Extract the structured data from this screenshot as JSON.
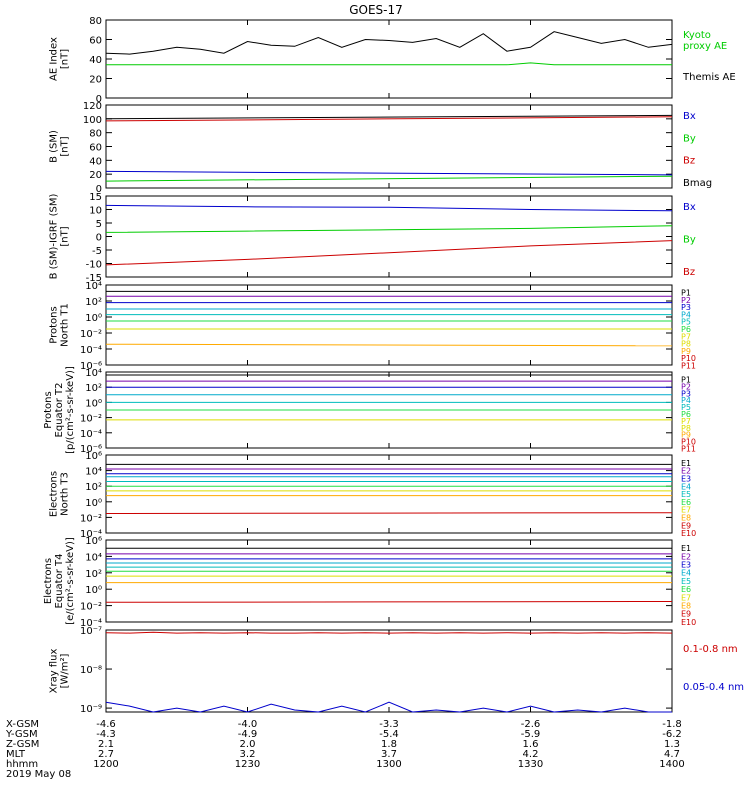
{
  "title": "GOES-17",
  "colors": {
    "black": "#000000",
    "green": "#00cc00",
    "red": "#cc0000",
    "blue": "#0000cc",
    "purple": "#7700aa",
    "cyan": "#00aacc",
    "teal": "#00bbbb",
    "yellow": "#dddd00",
    "orange": "#ffaa00",
    "lime": "#22dd44"
  },
  "chart_data": [
    {
      "type": "line",
      "ylabel": "AE Index\n[nT]",
      "ylim": [
        0,
        80
      ],
      "yticks": [
        0,
        20,
        40,
        60,
        80
      ],
      "ytick_labels": [
        "0",
        "20",
        "40",
        "60",
        "80"
      ],
      "x": [
        0,
        5,
        10,
        15,
        20,
        25,
        30,
        35,
        40,
        45,
        50,
        55,
        60,
        65,
        70,
        75,
        80,
        85,
        90,
        95,
        100,
        105,
        110,
        115,
        120
      ],
      "series": [
        {
          "name": "Kyoto proxy AE",
          "color": "green",
          "values": [
            34,
            34,
            34,
            34,
            34,
            34,
            34,
            34,
            34,
            34,
            34,
            34,
            34,
            34,
            34,
            34,
            34,
            34,
            36,
            34,
            34,
            34,
            34,
            34,
            34
          ]
        },
        {
          "name": "Themis AE",
          "color": "black",
          "values": [
            46,
            45,
            48,
            52,
            50,
            46,
            58,
            54,
            53,
            62,
            52,
            60,
            59,
            57,
            61,
            52,
            66,
            48,
            52,
            68,
            62,
            56,
            60,
            52,
            55
          ]
        }
      ],
      "legend": [
        {
          "text": "Kyoto",
          "color": "green"
        },
        {
          "text": "proxy AE",
          "color": "green"
        },
        {
          "text": "Themis AE",
          "color": "black"
        }
      ]
    },
    {
      "type": "line",
      "ylabel": "B (SM)\n[nT]",
      "ylim": [
        0,
        120
      ],
      "yticks": [
        0,
        20,
        40,
        60,
        80,
        100,
        120
      ],
      "ytick_labels": [
        "0",
        "20",
        "40",
        "60",
        "80",
        "100",
        "120"
      ],
      "x": [
        0,
        120
      ],
      "series": [
        {
          "name": "Bz",
          "color": "red",
          "values": [
            97,
            103
          ]
        },
        {
          "name": "Bx",
          "color": "blue",
          "values": [
            24,
            19
          ]
        },
        {
          "name": "By",
          "color": "green",
          "values": [
            10,
            17
          ]
        },
        {
          "name": "Bmag",
          "color": "black",
          "values": [
            100,
            105
          ]
        }
      ],
      "legend": [
        {
          "text": "Bx",
          "color": "blue"
        },
        {
          "text": "By",
          "color": "green"
        },
        {
          "text": "Bz",
          "color": "red"
        },
        {
          "text": "Bmag",
          "color": "black"
        }
      ]
    },
    {
      "type": "line",
      "ylabel": "B (SM)-IGRF (SM)\n[nT]",
      "ylim": [
        -15,
        15
      ],
      "yticks": [
        -15,
        -10,
        -5,
        0,
        5,
        10,
        15
      ],
      "ytick_labels": [
        "-15",
        "-10",
        "-5",
        "0",
        "5",
        "10",
        "15"
      ],
      "x": [
        0,
        30,
        60,
        90,
        120
      ],
      "series": [
        {
          "name": "Bx",
          "color": "blue",
          "values": [
            11.5,
            11,
            10.8,
            10,
            9.5
          ]
        },
        {
          "name": "By",
          "color": "green",
          "values": [
            1.5,
            2,
            2.5,
            3,
            4
          ]
        },
        {
          "name": "Bz",
          "color": "red",
          "values": [
            -10.5,
            -8.5,
            -6,
            -3.5,
            -1.5
          ]
        }
      ],
      "legend": [
        {
          "text": "Bx",
          "color": "blue"
        },
        {
          "text": "By",
          "color": "green"
        },
        {
          "text": "Bz",
          "color": "red"
        }
      ]
    },
    {
      "type": "line",
      "scale": "log",
      "ylabel": "Protons\nNorth T1",
      "ylim": [
        -6,
        4
      ],
      "yticks": [
        -6,
        -4,
        -2,
        0,
        2,
        4
      ],
      "ytick_labels": [
        "10⁻⁶",
        "10⁻⁴",
        "10⁻²",
        "10⁰",
        "10²",
        "10⁴"
      ],
      "x": [
        0,
        120
      ],
      "series": [
        {
          "name": "P1",
          "color": "black",
          "values": [
            3.2,
            3.2
          ]
        },
        {
          "name": "P2",
          "color": "purple",
          "values": [
            2.6,
            2.6
          ]
        },
        {
          "name": "P3",
          "color": "blue",
          "values": [
            1.8,
            1.8
          ]
        },
        {
          "name": "P4",
          "color": "cyan",
          "values": [
            1.0,
            1.0
          ]
        },
        {
          "name": "P5",
          "color": "teal",
          "values": [
            0.3,
            0.3
          ]
        },
        {
          "name": "P6",
          "color": "lime",
          "values": [
            -0.5,
            -0.5
          ]
        },
        {
          "name": "P7",
          "color": "yellow",
          "values": [
            -1.5,
            -1.5
          ]
        },
        {
          "name": "P8",
          "color": "orange",
          "values": [
            -3.4,
            -3.6
          ]
        }
      ],
      "legend": [
        "P1",
        "P2",
        "P3",
        "P4",
        "P5",
        "P6",
        "P7",
        "P8",
        "P9",
        "P10",
        "P11"
      ],
      "legend_colors": [
        "black",
        "purple",
        "blue",
        "cyan",
        "teal",
        "lime",
        "yellow",
        "yellow",
        "orange",
        "red",
        "red"
      ]
    },
    {
      "type": "line",
      "scale": "log",
      "ylabel": "Protons\nEquator T2\n[p/(cm²-s-sr-keV)]",
      "ylim": [
        -6,
        4
      ],
      "yticks": [
        -6,
        -4,
        -2,
        0,
        2,
        4
      ],
      "ytick_labels": [
        "10⁻⁶",
        "10⁻⁴",
        "10⁻²",
        "10⁰",
        "10²",
        "10⁴"
      ],
      "x": [
        0,
        120
      ],
      "series": [
        {
          "name": "P1",
          "color": "black",
          "values": [
            3.6,
            3.6
          ]
        },
        {
          "name": "P2",
          "color": "purple",
          "values": [
            2.8,
            2.8
          ]
        },
        {
          "name": "P3",
          "color": "blue",
          "values": [
            2.0,
            2.0
          ]
        },
        {
          "name": "P4",
          "color": "cyan",
          "values": [
            1.0,
            1.0
          ]
        },
        {
          "name": "P5",
          "color": "teal",
          "values": [
            0.0,
            0.0
          ]
        },
        {
          "name": "P6",
          "color": "lime",
          "values": [
            -1.0,
            -1.0
          ]
        },
        {
          "name": "P7",
          "color": "yellow",
          "values": [
            -2.3,
            -2.3
          ]
        }
      ],
      "legend": [
        "P1",
        "P2",
        "P3",
        "P4",
        "P5",
        "P6",
        "P7",
        "P8",
        "P9",
        "P10",
        "P11"
      ],
      "legend_colors": [
        "black",
        "purple",
        "blue",
        "cyan",
        "teal",
        "lime",
        "yellow",
        "yellow",
        "orange",
        "red",
        "red"
      ]
    },
    {
      "type": "line",
      "scale": "log",
      "ylabel": "Electrons\nNorth T3",
      "ylim": [
        -4,
        6
      ],
      "yticks": [
        -4,
        -2,
        0,
        2,
        4,
        6
      ],
      "ytick_labels": [
        "10⁻⁴",
        "10⁻²",
        "10⁰",
        "10²",
        "10⁴",
        "10⁶"
      ],
      "x": [
        0,
        120
      ],
      "series": [
        {
          "name": "E1",
          "color": "black",
          "values": [
            4.8,
            4.8
          ]
        },
        {
          "name": "E2",
          "color": "purple",
          "values": [
            4.2,
            4.2
          ]
        },
        {
          "name": "E3",
          "color": "blue",
          "values": [
            3.6,
            3.6
          ]
        },
        {
          "name": "E4",
          "color": "cyan",
          "values": [
            3.2,
            3.2
          ]
        },
        {
          "name": "E5",
          "color": "teal",
          "values": [
            2.6,
            2.6
          ]
        },
        {
          "name": "E6",
          "color": "lime",
          "values": [
            2.0,
            2.0
          ]
        },
        {
          "name": "E7",
          "color": "yellow",
          "values": [
            1.4,
            1.4
          ]
        },
        {
          "name": "E8",
          "color": "orange",
          "values": [
            0.8,
            0.8
          ]
        },
        {
          "name": "E9",
          "color": "red",
          "values": [
            -1.5,
            -1.4
          ]
        }
      ],
      "legend": [
        "E1",
        "E2",
        "E3",
        "E4",
        "E5",
        "E6",
        "E7",
        "E8",
        "E9",
        "E10"
      ],
      "legend_colors": [
        "black",
        "purple",
        "blue",
        "cyan",
        "teal",
        "lime",
        "yellow",
        "orange",
        "red",
        "red"
      ]
    },
    {
      "type": "line",
      "scale": "log",
      "ylabel": "Electrons\nEquator T4\n[e/(cm²-s-sr-keV)]",
      "ylim": [
        -4,
        6
      ],
      "yticks": [
        -4,
        -2,
        0,
        2,
        4,
        6
      ],
      "ytick_labels": [
        "10⁻⁴",
        "10⁻²",
        "10⁰",
        "10²",
        "10⁴",
        "10⁶"
      ],
      "x": [
        0,
        120
      ],
      "series": [
        {
          "name": "E1",
          "color": "black",
          "values": [
            5.0,
            5.0
          ]
        },
        {
          "name": "E2",
          "color": "purple",
          "values": [
            4.3,
            4.3
          ]
        },
        {
          "name": "E3",
          "color": "blue",
          "values": [
            3.7,
            3.7
          ]
        },
        {
          "name": "E4",
          "color": "cyan",
          "values": [
            3.2,
            3.2
          ]
        },
        {
          "name": "E5",
          "color": "teal",
          "values": [
            2.7,
            2.7
          ]
        },
        {
          "name": "E6",
          "color": "lime",
          "values": [
            2.2,
            2.2
          ]
        },
        {
          "name": "E7",
          "color": "yellow",
          "values": [
            1.6,
            1.6
          ]
        },
        {
          "name": "E8",
          "color": "orange",
          "values": [
            0.8,
            0.8
          ]
        },
        {
          "name": "E9",
          "color": "red",
          "values": [
            -1.6,
            -1.5
          ]
        }
      ],
      "legend": [
        "E1",
        "E2",
        "E3",
        "E4",
        "E5",
        "E6",
        "E7",
        "E8",
        "E9",
        "E10"
      ],
      "legend_colors": [
        "black",
        "purple",
        "blue",
        "cyan",
        "teal",
        "lime",
        "yellow",
        "orange",
        "red",
        "red"
      ]
    },
    {
      "type": "line",
      "scale": "log",
      "ylabel": "Xray flux\n[W/m²]",
      "ylim": [
        -9.1,
        -7
      ],
      "yticks": [
        -9,
        -8,
        -7
      ],
      "ytick_labels": [
        "10⁻⁹",
        "10⁻⁸",
        "10⁻⁷"
      ],
      "x": [
        0,
        5,
        10,
        15,
        20,
        25,
        30,
        35,
        40,
        45,
        50,
        55,
        60,
        65,
        70,
        75,
        80,
        85,
        90,
        95,
        100,
        105,
        110,
        115,
        120
      ],
      "series": [
        {
          "name": "0.1-0.8 nm",
          "color": "red",
          "values": [
            -7.07,
            -7.08,
            -7.06,
            -7.08,
            -7.07,
            -7.08,
            -7.07,
            -7.08,
            -7.08,
            -7.07,
            -7.08,
            -7.07,
            -7.08,
            -7.07,
            -7.08,
            -7.07,
            -7.08,
            -7.07,
            -7.08,
            -7.07,
            -7.08,
            -7.07,
            -7.08,
            -7.07,
            -7.08
          ]
        },
        {
          "name": "0.05-0.4 nm",
          "color": "blue",
          "values": [
            -8.85,
            -8.95,
            -9.1,
            -9.0,
            -9.1,
            -8.95,
            -9.1,
            -8.9,
            -9.05,
            -9.1,
            -8.95,
            -9.1,
            -8.85,
            -9.1,
            -9.05,
            -9.1,
            -9.0,
            -9.1,
            -8.95,
            -9.1,
            -9.05,
            -9.1,
            -9.0,
            -9.1,
            -9.1
          ]
        }
      ],
      "legend": [
        {
          "text": "0.1-0.8 nm",
          "color": "red"
        },
        {
          "text": "0.05-0.4 nm",
          "color": "blue"
        }
      ]
    }
  ],
  "xaxis": {
    "rows": [
      {
        "label": "X-GSM",
        "values": [
          "-4.6",
          "-4.0",
          "-3.3",
          "-2.6",
          "-1.8"
        ]
      },
      {
        "label": "Y-GSM",
        "values": [
          "-4.3",
          "-4.9",
          "-5.4",
          "-5.9",
          "-6.2"
        ]
      },
      {
        "label": "Z-GSM",
        "values": [
          "2.1",
          "2.0",
          "1.8",
          "1.6",
          "1.3"
        ]
      },
      {
        "label": "MLT",
        "values": [
          "2.7",
          "3.2",
          "3.7",
          "4.2",
          "4.7"
        ]
      },
      {
        "label": "hhmm",
        "values": [
          "1200",
          "1230",
          "1300",
          "1330",
          "1400"
        ]
      }
    ],
    "date": "2019 May 08",
    "tick_minutes": [
      0,
      30,
      60,
      90,
      120
    ],
    "xlim": [
      0,
      120
    ]
  }
}
